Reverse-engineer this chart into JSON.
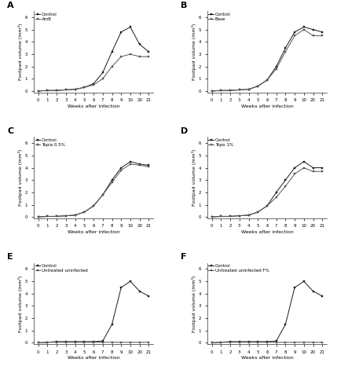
{
  "weeks_labels": [
    "0",
    "1",
    "2",
    "3",
    "4",
    "5",
    "6",
    "7",
    "8",
    "9",
    "10",
    "20",
    "21"
  ],
  "panels": [
    {
      "label": "A",
      "legend": [
        "Control",
        "AmB"
      ],
      "control": [
        0.0,
        0.05,
        0.05,
        0.1,
        0.15,
        0.3,
        0.6,
        1.5,
        3.2,
        4.8,
        5.2,
        3.8,
        3.2
      ],
      "treatment": [
        0.0,
        0.05,
        0.05,
        0.1,
        0.15,
        0.3,
        0.5,
        1.0,
        2.0,
        2.8,
        3.0,
        2.8,
        2.8
      ],
      "xlabel": "Weeks after infection",
      "ylabel": "Footpad volume (mm³)"
    },
    {
      "label": "B",
      "legend": [
        "Control",
        "Base"
      ],
      "control": [
        0.0,
        0.05,
        0.05,
        0.1,
        0.15,
        0.4,
        0.9,
        2.0,
        3.5,
        4.8,
        5.2,
        5.0,
        4.8
      ],
      "treatment": [
        0.0,
        0.05,
        0.05,
        0.1,
        0.15,
        0.4,
        0.9,
        1.8,
        3.2,
        4.5,
        5.0,
        4.5,
        4.5
      ],
      "xlabel": "Weeks after infection",
      "ylabel": "Footpad volume (mm³)"
    },
    {
      "label": "C",
      "legend": [
        "Control",
        "Topia 0.5%"
      ],
      "control": [
        0.0,
        0.05,
        0.05,
        0.1,
        0.15,
        0.4,
        0.9,
        1.8,
        3.0,
        4.0,
        4.5,
        4.3,
        4.2
      ],
      "treatment": [
        0.0,
        0.05,
        0.05,
        0.1,
        0.15,
        0.4,
        0.9,
        1.8,
        2.8,
        3.8,
        4.3,
        4.2,
        4.1
      ],
      "xlabel": "Weeks after infection",
      "ylabel": "Footpad volume (mm³)"
    },
    {
      "label": "D",
      "legend": [
        "Control",
        "Topo 1%"
      ],
      "control": [
        0.0,
        0.05,
        0.05,
        0.1,
        0.15,
        0.4,
        0.9,
        2.0,
        3.0,
        4.0,
        4.5,
        4.0,
        4.0
      ],
      "treatment": [
        0.0,
        0.05,
        0.05,
        0.1,
        0.15,
        0.4,
        0.9,
        1.6,
        2.5,
        3.5,
        4.0,
        3.7,
        3.7
      ],
      "xlabel": "Weeks after infection",
      "ylabel": "Footpad volume (mm³)"
    },
    {
      "label": "E",
      "legend": [
        "Control",
        "Untreated uninfected"
      ],
      "control": [
        0.0,
        0.05,
        0.1,
        0.1,
        0.1,
        0.1,
        0.1,
        0.15,
        1.5,
        4.5,
        5.0,
        4.2,
        3.8
      ],
      "treatment": [
        0.0,
        0.05,
        0.05,
        0.05,
        0.05,
        0.05,
        0.05,
        0.05,
        0.05,
        0.05,
        0.05,
        0.05,
        0.05
      ],
      "xlabel": "Weeks after infection",
      "ylabel": "Footpad volume (mm³)"
    },
    {
      "label": "F",
      "legend": [
        "Control",
        "Untreated uninfected F%"
      ],
      "control": [
        0.0,
        0.05,
        0.1,
        0.1,
        0.1,
        0.1,
        0.1,
        0.15,
        1.5,
        4.5,
        5.0,
        4.2,
        3.8
      ],
      "treatment": [
        0.0,
        0.05,
        0.05,
        0.05,
        0.05,
        0.05,
        0.05,
        0.05,
        0.05,
        0.05,
        0.05,
        0.05,
        0.05
      ],
      "xlabel": "Weeks after infection",
      "ylabel": "Footpad volume (mm³)"
    }
  ],
  "line_color_control": "#1a1a1a",
  "line_color_treatment": "#1a1a1a",
  "marker_control": "s",
  "marker_treatment": "s",
  "background_color": "#ffffff",
  "yticks": [
    0,
    1,
    2,
    3,
    4,
    5,
    6
  ],
  "fontsize_label": 4.5,
  "fontsize_tick": 4.0,
  "fontsize_legend": 4.0,
  "fontsize_panel_label": 8,
  "markersize_control": 2.0,
  "markersize_treatment": 2.0,
  "linewidth": 0.7
}
